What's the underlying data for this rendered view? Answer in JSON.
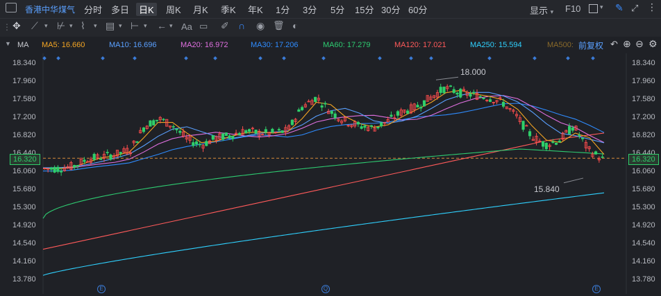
{
  "header": {
    "stock_name": "香港中华煤气",
    "periods": [
      "分时",
      "多日",
      "日K",
      "周K",
      "月K",
      "季K",
      "年K",
      "1分",
      "3分",
      "5分",
      "15分",
      "30分",
      "60分"
    ],
    "active_period": "日K",
    "display_label": "显示",
    "f10_label": "F10"
  },
  "toolbar": {
    "text_tool": "Aa"
  },
  "ma_bar": {
    "label": "MA",
    "ma5": "MA5: 16.660",
    "ma10": "MA10: 16.696",
    "ma20": "MA20: 16.972",
    "ma30": "MA30: 17.206",
    "ma60": "MA60: 17.279",
    "ma120": "MA120: 17.021",
    "ma250": "MA250: 15.594",
    "ma500": "MA500:",
    "adjust": "前复权",
    "colors": {
      "ma5": "#f5a623",
      "ma10": "#5aa0ff",
      "ma20": "#e070e0",
      "ma30": "#2f8cff",
      "ma60": "#2ecc71",
      "ma120": "#ff5a5a",
      "ma250": "#2fd1ff",
      "ma500": "#8a6a2a"
    }
  },
  "chart_data": {
    "type": "candlestick",
    "y_ticks": [
      "18.340",
      "17.960",
      "17.580",
      "17.200",
      "16.820",
      "16.440",
      "16.060",
      "15.680",
      "15.300",
      "14.920",
      "14.540",
      "14.160",
      "13.780"
    ],
    "ylim": [
      13.78,
      18.34
    ],
    "current_price": "16.320",
    "high_annotation": "18.000",
    "low_annotation": "15.840",
    "up_color": "#ff4d4d",
    "down_color": "#2fcf6a",
    "markers": [
      "E",
      "Q",
      "E"
    ]
  }
}
